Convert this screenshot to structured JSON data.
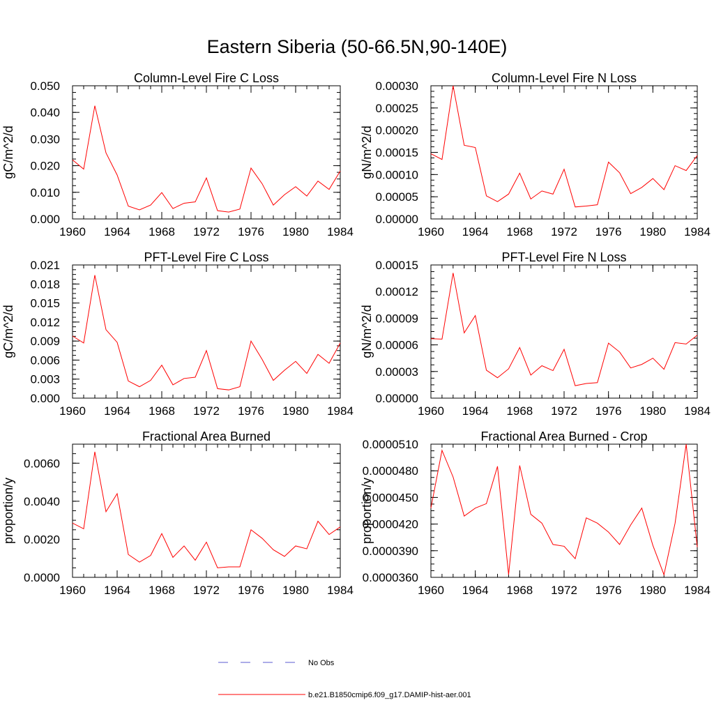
{
  "figure_title": "Eastern Siberia (50-66.5N,90-140E)",
  "legend": {
    "obs_label": "No Obs",
    "obs_color": "#5a5ad0",
    "model_label": "b.e21.B1850cmip6.f09_g17.DAMIP-hist-aer.001",
    "model_color": "#ff0000"
  },
  "chart_data": [
    {
      "type": "line",
      "title": "Column-Level Fire C Loss",
      "ylabel": "gC/m^2/d",
      "xlim": [
        1960,
        1984
      ],
      "ylim": [
        0,
        0.05
      ],
      "xticks": [
        "1960",
        "1964",
        "1968",
        "1972",
        "1976",
        "1980",
        "1984"
      ],
      "yticks": [
        "0.000",
        "0.010",
        "0.020",
        "0.030",
        "0.040",
        "0.050"
      ],
      "x": [
        1960,
        1961,
        1962,
        1963,
        1964,
        1965,
        1966,
        1967,
        1968,
        1969,
        1970,
        1971,
        1972,
        1973,
        1974,
        1975,
        1976,
        1977,
        1978,
        1979,
        1980,
        1981,
        1982,
        1983,
        1984
      ],
      "series": [
        {
          "values": [
            0.0222,
            0.0187,
            0.0425,
            0.0248,
            0.0165,
            0.0048,
            0.0034,
            0.0052,
            0.0099,
            0.0039,
            0.0059,
            0.0064,
            0.0154,
            0.0031,
            0.0026,
            0.0037,
            0.0191,
            0.0132,
            0.0052,
            0.0091,
            0.0121,
            0.0086,
            0.0142,
            0.0111,
            0.018
          ]
        }
      ]
    },
    {
      "type": "line",
      "title": "Column-Level Fire N Loss",
      "ylabel": "gN/m^2/d",
      "xlim": [
        1960,
        1984
      ],
      "ylim": [
        0,
        0.0003
      ],
      "xticks": [
        "1960",
        "1964",
        "1968",
        "1972",
        "1976",
        "1980",
        "1984"
      ],
      "yticks": [
        "0.00000",
        "0.00005",
        "0.00010",
        "0.00015",
        "0.00020",
        "0.00025",
        "0.00030"
      ],
      "x": [
        1960,
        1961,
        1962,
        1963,
        1964,
        1965,
        1966,
        1967,
        1968,
        1969,
        1970,
        1971,
        1972,
        1973,
        1974,
        1975,
        1976,
        1977,
        1978,
        1979,
        1980,
        1981,
        1982,
        1983,
        1984
      ],
      "series": [
        {
          "values": [
            0.000147,
            0.000134,
            0.0003,
            0.000166,
            0.000161,
            5.2e-05,
            3.9e-05,
            5.6e-05,
            0.000103,
            4.5e-05,
            6.3e-05,
            5.6e-05,
            0.000112,
            2.7e-05,
            2.9e-05,
            3.2e-05,
            0.000128,
            0.000104,
            5.7e-05,
            7.1e-05,
            9.1e-05,
            6.6e-05,
            0.00012,
            0.000109,
            0.000143
          ]
        }
      ]
    },
    {
      "type": "line",
      "title": "PFT-Level Fire C Loss",
      "ylabel": "gC/m^2/d",
      "xlim": [
        1960,
        1984
      ],
      "ylim": [
        0,
        0.021
      ],
      "xticks": [
        "1960",
        "1964",
        "1968",
        "1972",
        "1976",
        "1980",
        "1984"
      ],
      "yticks": [
        "0.000",
        "0.003",
        "0.006",
        "0.009",
        "0.012",
        "0.015",
        "0.018",
        "0.021"
      ],
      "x": [
        1960,
        1961,
        1962,
        1963,
        1964,
        1965,
        1966,
        1967,
        1968,
        1969,
        1970,
        1971,
        1972,
        1973,
        1974,
        1975,
        1976,
        1977,
        1978,
        1979,
        1980,
        1981,
        1982,
        1983,
        1984
      ],
      "series": [
        {
          "values": [
            0.0098,
            0.0087,
            0.0194,
            0.0108,
            0.0088,
            0.0027,
            0.0018,
            0.0028,
            0.0052,
            0.0021,
            0.0031,
            0.0033,
            0.0075,
            0.0015,
            0.0013,
            0.0018,
            0.009,
            0.0061,
            0.0028,
            0.0044,
            0.0058,
            0.0039,
            0.0069,
            0.0055,
            0.0087
          ]
        }
      ]
    },
    {
      "type": "line",
      "title": "PFT-Level Fire N Loss",
      "ylabel": "gN/m^2/d",
      "xlim": [
        1960,
        1984
      ],
      "ylim": [
        0,
        0.00015
      ],
      "xticks": [
        "1960",
        "1964",
        "1968",
        "1972",
        "1976",
        "1980",
        "1984"
      ],
      "yticks": [
        "0.00000",
        "0.00003",
        "0.00006",
        "0.00009",
        "0.00012",
        "0.00015"
      ],
      "x": [
        1960,
        1961,
        1962,
        1963,
        1964,
        1965,
        1966,
        1967,
        1968,
        1969,
        1970,
        1971,
        1972,
        1973,
        1974,
        1975,
        1976,
        1977,
        1978,
        1979,
        1980,
        1981,
        1982,
        1983,
        1984
      ],
      "series": [
        {
          "values": [
            6.7e-05,
            6.65e-05,
            0.000141,
            7.35e-05,
            9.3e-05,
            3.15e-05,
            2.3e-05,
            3.3e-05,
            5.7e-05,
            2.6e-05,
            3.65e-05,
            3.1e-05,
            5.5e-05,
            1.4e-05,
            1.65e-05,
            1.75e-05,
            6.2e-05,
            5.2e-05,
            3.4e-05,
            3.8e-05,
            4.5e-05,
            3.25e-05,
            6.25e-05,
            6.1e-05,
            7.1e-05
          ]
        }
      ]
    },
    {
      "type": "line",
      "title": "Fractional Area Burned",
      "ylabel": "proportion/y",
      "xlim": [
        1960,
        1984
      ],
      "ylim": [
        0,
        0.007
      ],
      "xticks": [
        "1960",
        "1964",
        "1968",
        "1972",
        "1976",
        "1980",
        "1984"
      ],
      "yticks": [
        "0.0000",
        "0.0020",
        "0.0040",
        "0.0060"
      ],
      "ytick_values": [
        0,
        0.002,
        0.004,
        0.006
      ],
      "x": [
        1960,
        1961,
        1962,
        1963,
        1964,
        1965,
        1966,
        1967,
        1968,
        1969,
        1970,
        1971,
        1972,
        1973,
        1974,
        1975,
        1976,
        1977,
        1978,
        1979,
        1980,
        1981,
        1982,
        1983,
        1984
      ],
      "series": [
        {
          "values": [
            0.00285,
            0.00255,
            0.0066,
            0.00345,
            0.0044,
            0.0012,
            0.0008,
            0.00115,
            0.0023,
            0.00105,
            0.00165,
            0.0009,
            0.00185,
            0.0005,
            0.00055,
            0.00055,
            0.0025,
            0.00205,
            0.00145,
            0.0011,
            0.00165,
            0.0015,
            0.00295,
            0.00225,
            0.00265
          ]
        }
      ]
    },
    {
      "type": "line",
      "title": "Fractional Area Burned - Crop",
      "ylabel": "proportion/y",
      "xlim": [
        1960,
        1984
      ],
      "ylim": [
        3.6e-05,
        5.1e-05
      ],
      "xticks": [
        "1960",
        "1964",
        "1968",
        "1972",
        "1976",
        "1980",
        "1984"
      ],
      "yticks": [
        "0.0000360",
        "0.0000390",
        "0.0000420",
        "0.0000450",
        "0.0000480",
        "0.0000510"
      ],
      "x": [
        1960,
        1961,
        1962,
        1963,
        1964,
        1965,
        1966,
        1967,
        1968,
        1969,
        1970,
        1971,
        1972,
        1973,
        1974,
        1975,
        1976,
        1977,
        1978,
        1979,
        1980,
        1981,
        1982,
        1983,
        1984
      ],
      "series": [
        {
          "values": [
            4.38e-05,
            5.03e-05,
            4.73e-05,
            4.29e-05,
            4.38e-05,
            4.43e-05,
            4.85e-05,
            3.63e-05,
            4.86e-05,
            4.31e-05,
            4.21e-05,
            3.97e-05,
            3.95e-05,
            3.81e-05,
            4.27e-05,
            4.21e-05,
            4.11e-05,
            3.97e-05,
            4.19e-05,
            4.38e-05,
            3.96e-05,
            3.63e-05,
            4.21e-05,
            5.1e-05,
            3.94e-05
          ]
        }
      ]
    }
  ]
}
